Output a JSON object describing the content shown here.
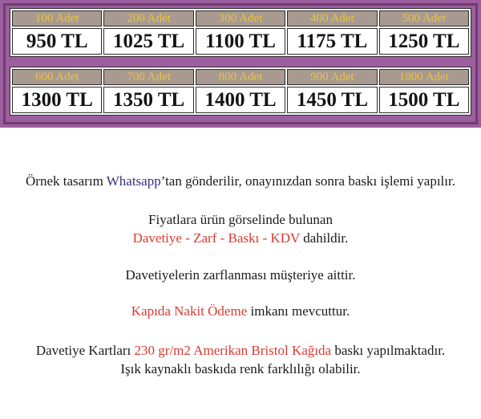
{
  "palette": {
    "banner_purple": "#9c5e9f",
    "banner_frame": "#6f3d71",
    "header_taupe": "#a89a90",
    "header_yellow": "#eac33f",
    "cell_border": "#2e2a2b",
    "price_black": "#141414",
    "note_black": "#1c1a1a",
    "note_red": "#d93a33",
    "note_blue": "#32317f"
  },
  "banner": {
    "tables": [
      {
        "headers": [
          "100 Adet",
          "200 Adet",
          "300 Adet",
          "400 Adet",
          "500 Adet"
        ],
        "prices": [
          "950 TL",
          "1025 TL",
          "1100 TL",
          "1175 TL",
          "1250 TL"
        ]
      },
      {
        "headers": [
          "600 Adet",
          "700 Adet",
          "800 Adet",
          "900 Adet",
          "1000 Adet"
        ],
        "prices": [
          "1300 TL",
          "1350 TL",
          "1400 TL",
          "1450 TL",
          "1500 TL"
        ]
      }
    ]
  },
  "notes": {
    "lines": [
      {
        "segments": [
          {
            "text": "Örnek tasarım ",
            "color": "black"
          },
          {
            "text": "Whatsapp",
            "color": "blue"
          },
          {
            "text": "’tan gönderilir, onayınızdan sonra baskı işlemi yapılır.",
            "color": "black"
          }
        ]
      },
      {
        "segments": [
          {
            "text": "Fiyatlara ürün görselinde bulunan",
            "color": "black"
          }
        ]
      },
      {
        "segments": [
          {
            "text": "Davetiye - Zarf - Baskı - KDV",
            "color": "red"
          },
          {
            "text": " dahildir.",
            "color": "black"
          }
        ]
      },
      {
        "segments": [
          {
            "text": "Davetiyelerin zarflanması müşteriye aittir.",
            "color": "black"
          }
        ]
      },
      {
        "segments": [
          {
            "text": "Kapıda Nakit Ödeme",
            "color": "red"
          },
          {
            "text": " imkanı mevcuttur.",
            "color": "black"
          }
        ]
      },
      {
        "segments": [
          {
            "text": "Davetiye Kartları ",
            "color": "black"
          },
          {
            "text": "230 gr/m2 Amerikan Bristol Kağıda",
            "color": "red"
          },
          {
            "text": " baskı yapılmaktadır.",
            "color": "black"
          }
        ]
      },
      {
        "segments": [
          {
            "text": "Işık kaynaklı baskıda renk farklılığı olabilir.",
            "color": "black"
          }
        ]
      }
    ]
  }
}
